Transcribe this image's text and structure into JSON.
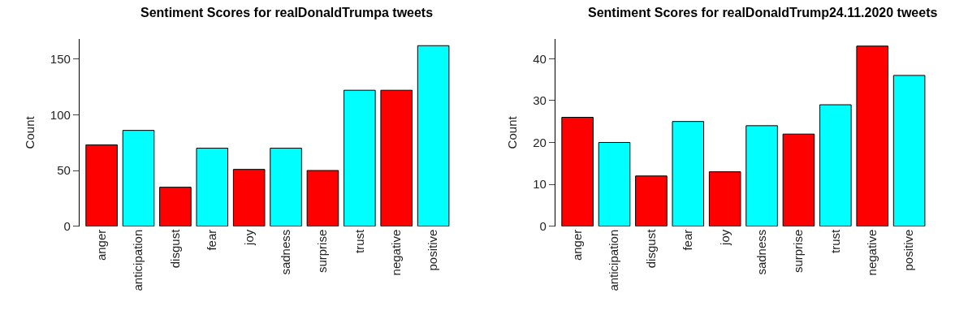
{
  "chart_data": [
    {
      "type": "bar",
      "title": "Sentiment Scores for realDonaldTrumpa tweets",
      "ylabel": "Count",
      "categories": [
        "anger",
        "anticipation",
        "disgust",
        "fear",
        "joy",
        "sadness",
        "surprise",
        "trust",
        "negative",
        "positive"
      ],
      "values": [
        73,
        86,
        35,
        70,
        51,
        70,
        50,
        122,
        122,
        162
      ],
      "colors": [
        "#ff0000",
        "#00ffff",
        "#ff0000",
        "#00ffff",
        "#ff0000",
        "#00ffff",
        "#ff0000",
        "#00ffff",
        "#ff0000",
        "#00ffff"
      ],
      "ylim": [
        0,
        168
      ],
      "yticks": [
        0,
        50,
        100,
        150
      ]
    },
    {
      "type": "bar",
      "title": "Sentiment Scores for realDonaldTrump24.11.2020 tweets",
      "ylabel": "Count",
      "categories": [
        "anger",
        "anticipation",
        "disgust",
        "fear",
        "joy",
        "sadness",
        "surprise",
        "trust",
        "negative",
        "positive"
      ],
      "values": [
        26,
        20,
        12,
        25,
        13,
        24,
        22,
        29,
        43,
        36
      ],
      "colors": [
        "#ff0000",
        "#00ffff",
        "#ff0000",
        "#00ffff",
        "#ff0000",
        "#00ffff",
        "#ff0000",
        "#00ffff",
        "#ff0000",
        "#00ffff"
      ],
      "ylim": [
        0,
        44.7
      ],
      "yticks": [
        0,
        10,
        20,
        30,
        40
      ]
    }
  ]
}
